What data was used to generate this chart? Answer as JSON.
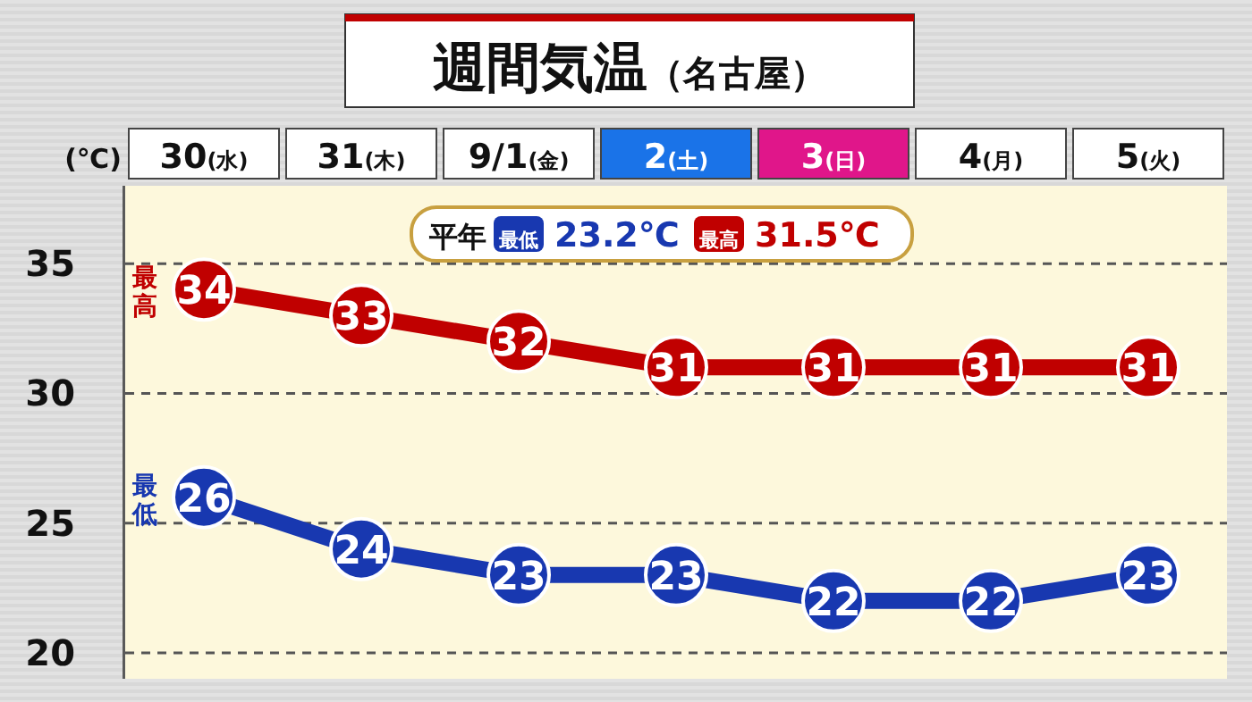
{
  "chart_data": {
    "type": "line",
    "title": "週間気温",
    "subtitle": "（名古屋）",
    "ylabel": "(℃)",
    "categories": [
      "30(水)",
      "31(木)",
      "9/1(金)",
      "2(土)",
      "3(日)",
      "4(月)",
      "5(火)"
    ],
    "series": [
      {
        "name": "最高",
        "color": "#c00000",
        "values": [
          34,
          33,
          32,
          31,
          31,
          31,
          31
        ]
      },
      {
        "name": "最低",
        "color": "#1838b0",
        "values": [
          26,
          24,
          23,
          23,
          22,
          22,
          23
        ]
      }
    ],
    "ylim": [
      19,
      38
    ],
    "yticks": [
      20,
      25,
      30,
      35
    ],
    "grid": "y",
    "data_labels": true,
    "marker": "circle",
    "line_style": "solid",
    "annotations": [
      "平年",
      "最低",
      "23.2℃",
      "最高",
      "31.5℃"
    ]
  }
}
